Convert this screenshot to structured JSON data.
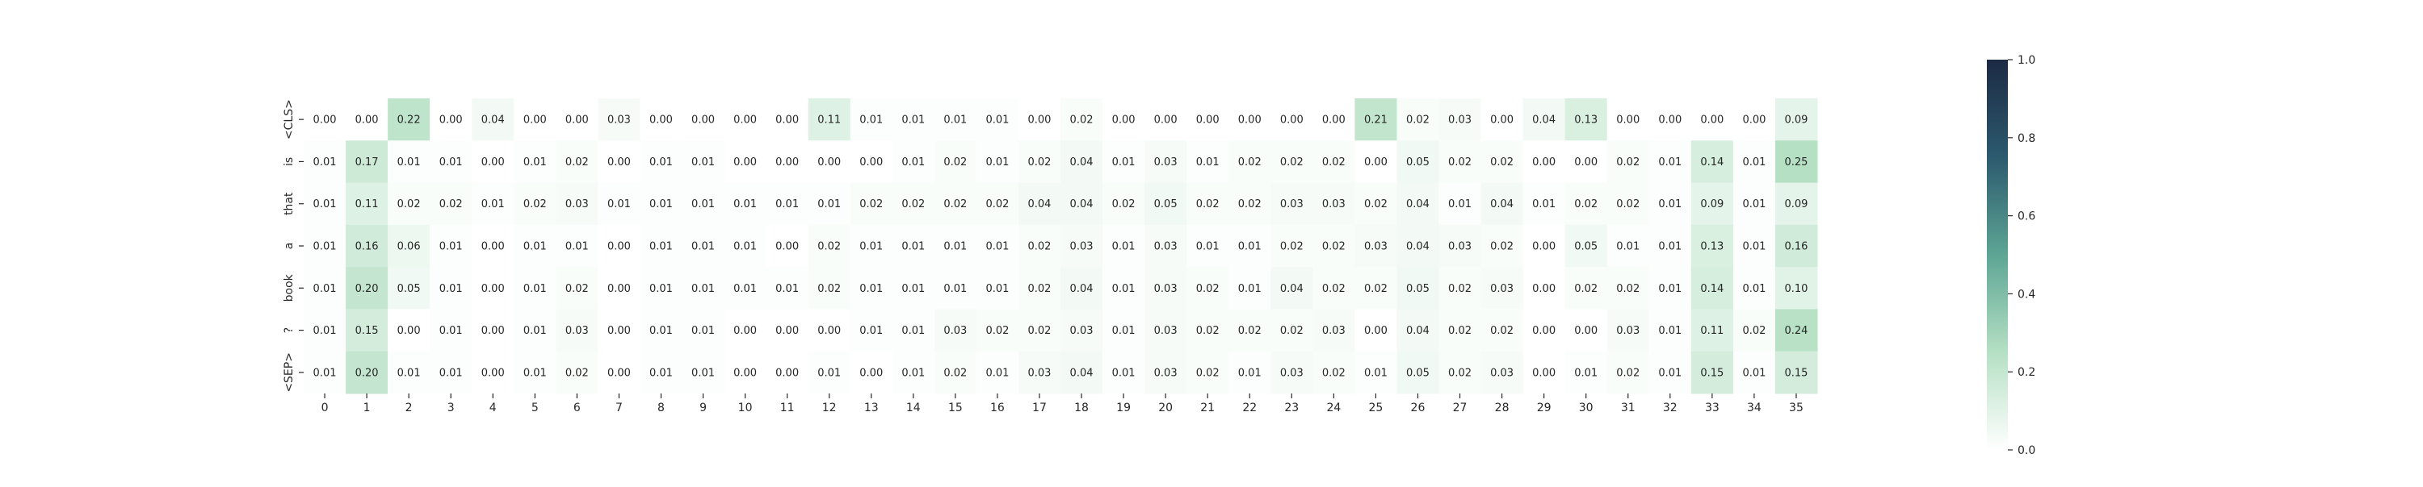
{
  "chart_data": {
    "type": "heatmap",
    "title": "",
    "xlabel": "",
    "ylabel": "",
    "x_labels": [
      "0",
      "1",
      "2",
      "3",
      "4",
      "5",
      "6",
      "7",
      "8",
      "9",
      "10",
      "11",
      "12",
      "13",
      "14",
      "15",
      "16",
      "17",
      "18",
      "19",
      "20",
      "21",
      "22",
      "23",
      "24",
      "25",
      "26",
      "27",
      "28",
      "29",
      "30",
      "31",
      "32",
      "33",
      "34",
      "35"
    ],
    "y_labels": [
      "<CLS>",
      "is",
      "that",
      "a",
      "book",
      "?",
      "<SEP>"
    ],
    "values": [
      [
        0.0,
        0.0,
        0.22,
        0.0,
        0.04,
        0.0,
        0.0,
        0.03,
        0.0,
        0.0,
        0.0,
        0.0,
        0.11,
        0.01,
        0.01,
        0.01,
        0.01,
        0.0,
        0.02,
        0.0,
        0.0,
        0.0,
        0.0,
        0.0,
        0.0,
        0.21,
        0.02,
        0.03,
        0.0,
        0.04,
        0.13,
        0.0,
        0.0,
        0.0,
        0.0,
        0.09
      ],
      [
        0.01,
        0.17,
        0.01,
        0.01,
        0.0,
        0.01,
        0.02,
        0.0,
        0.01,
        0.01,
        0.0,
        0.0,
        0.0,
        0.0,
        0.01,
        0.02,
        0.01,
        0.02,
        0.04,
        0.01,
        0.03,
        0.01,
        0.02,
        0.02,
        0.02,
        0.0,
        0.05,
        0.02,
        0.02,
        0.0,
        0.0,
        0.02,
        0.01,
        0.14,
        0.01,
        0.25
      ],
      [
        0.01,
        0.11,
        0.02,
        0.02,
        0.01,
        0.02,
        0.03,
        0.01,
        0.01,
        0.01,
        0.01,
        0.01,
        0.01,
        0.02,
        0.02,
        0.02,
        0.02,
        0.04,
        0.04,
        0.02,
        0.05,
        0.02,
        0.02,
        0.03,
        0.03,
        0.02,
        0.04,
        0.01,
        0.04,
        0.01,
        0.02,
        0.02,
        0.01,
        0.09,
        0.01,
        0.09
      ],
      [
        0.01,
        0.16,
        0.06,
        0.01,
        0.0,
        0.01,
        0.01,
        0.0,
        0.01,
        0.01,
        0.01,
        0.0,
        0.02,
        0.01,
        0.01,
        0.01,
        0.01,
        0.02,
        0.03,
        0.01,
        0.03,
        0.01,
        0.01,
        0.02,
        0.02,
        0.03,
        0.04,
        0.03,
        0.02,
        0.0,
        0.05,
        0.01,
        0.01,
        0.13,
        0.01,
        0.16
      ],
      [
        0.01,
        0.2,
        0.05,
        0.01,
        0.0,
        0.01,
        0.02,
        0.0,
        0.01,
        0.01,
        0.01,
        0.01,
        0.02,
        0.01,
        0.01,
        0.01,
        0.01,
        0.02,
        0.04,
        0.01,
        0.03,
        0.02,
        0.01,
        0.04,
        0.02,
        0.02,
        0.05,
        0.02,
        0.03,
        0.0,
        0.02,
        0.02,
        0.01,
        0.14,
        0.01,
        0.1
      ],
      [
        0.01,
        0.15,
        0.0,
        0.01,
        0.0,
        0.01,
        0.03,
        0.0,
        0.01,
        0.01,
        0.0,
        0.0,
        0.0,
        0.01,
        0.01,
        0.03,
        0.02,
        0.02,
        0.03,
        0.01,
        0.03,
        0.02,
        0.02,
        0.02,
        0.03,
        0.0,
        0.04,
        0.02,
        0.02,
        0.0,
        0.0,
        0.03,
        0.01,
        0.11,
        0.02,
        0.24
      ],
      [
        0.01,
        0.2,
        0.01,
        0.01,
        0.0,
        0.01,
        0.02,
        0.0,
        0.01,
        0.01,
        0.0,
        0.0,
        0.01,
        0.0,
        0.01,
        0.02,
        0.01,
        0.03,
        0.04,
        0.01,
        0.03,
        0.02,
        0.01,
        0.03,
        0.02,
        0.01,
        0.05,
        0.02,
        0.03,
        0.0,
        0.01,
        0.02,
        0.01,
        0.15,
        0.01,
        0.15
      ]
    ],
    "value_format": "0.00",
    "vmin": 0.0,
    "vmax": 1.0,
    "colormap": [
      "#ffffff",
      "#b5e0c4",
      "#5da594",
      "#2c5a6e",
      "#1c2a44"
    ],
    "colorbar_ticks": [
      "0.0",
      "0.2",
      "0.4",
      "0.6",
      "0.8",
      "1.0"
    ],
    "grid": false
  }
}
